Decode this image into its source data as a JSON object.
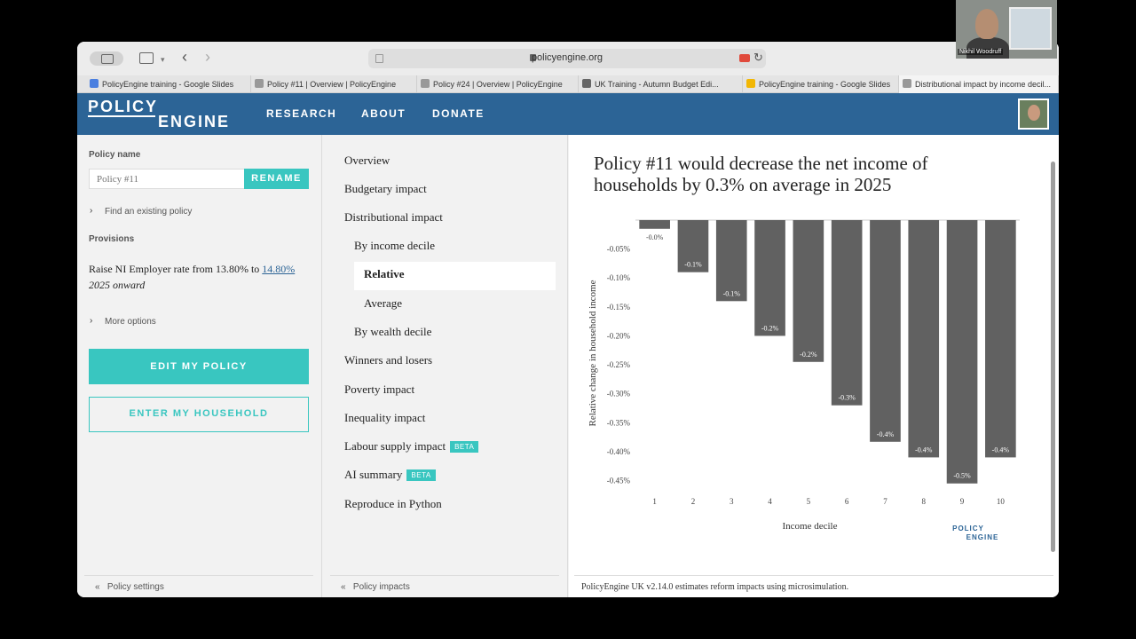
{
  "browser": {
    "url": "policyengine.org",
    "tabs": [
      {
        "title": "PolicyEngine training - Google Slides",
        "color": "#4a7fe0"
      },
      {
        "title": "Policy #11 | Overview | PolicyEngine",
        "color": "#999999"
      },
      {
        "title": "Policy #24 | Overview | PolicyEngine",
        "color": "#999999"
      },
      {
        "title": "UK Training - Autumn Budget Edi...",
        "color": "#666666"
      },
      {
        "title": "PolicyEngine training - Google Slides",
        "color": "#f2b705"
      },
      {
        "title": "Distributional impact by income decil...",
        "color": "#999999"
      }
    ]
  },
  "header": {
    "logo_top": "POLICY",
    "logo_bottom": "ENGINE",
    "nav": [
      "RESEARCH",
      "ABOUT",
      "DONATE"
    ]
  },
  "left": {
    "policy_name_label": "Policy name",
    "policy_name_placeholder": "Policy #11",
    "rename_label": "RENAME",
    "find_existing": "Find an existing policy",
    "provisions_label": "Provisions",
    "provision_text": "Raise NI Employer rate from 13.80% to",
    "provision_value": "14.80%",
    "provision_period": "2025 onward",
    "more_options": "More options",
    "edit_button": "EDIT MY POLICY",
    "household_button": "ENTER MY HOUSEHOLD",
    "footer": "Policy settings"
  },
  "middle": {
    "items": [
      {
        "label": "Overview"
      },
      {
        "label": "Budgetary impact"
      },
      {
        "label": "Distributional impact"
      },
      {
        "label": "By income decile"
      },
      {
        "label": "Relative"
      },
      {
        "label": "Average"
      },
      {
        "label": "By wealth decile"
      },
      {
        "label": "Winners and losers"
      },
      {
        "label": "Poverty impact"
      },
      {
        "label": "Inequality impact"
      },
      {
        "label": "Labour supply impact"
      },
      {
        "label": "AI summary"
      },
      {
        "label": "Reproduce in Python"
      }
    ],
    "beta_label": "BETA",
    "footer": "Policy impacts"
  },
  "right": {
    "title": "Policy #11 would decrease the net income of households by 0.3% on average in 2025",
    "footer": "PolicyEngine UK v2.14.0 estimates reform impacts using microsimulation.",
    "watermark_top": "POLICY",
    "watermark_bottom": "ENGINE"
  },
  "webcam": {
    "name": "Nikhil Woodruff"
  },
  "chart_data": {
    "type": "bar",
    "title": "Policy #11 would decrease the net income of households by 0.3% on average in 2025",
    "xlabel": "Income decile",
    "ylabel": "Relative change in household income",
    "categories": [
      "1",
      "2",
      "3",
      "4",
      "5",
      "6",
      "7",
      "8",
      "9",
      "10"
    ],
    "values": [
      -0.015,
      -0.09,
      -0.14,
      -0.2,
      -0.245,
      -0.32,
      -0.383,
      -0.41,
      -0.455,
      -0.41
    ],
    "data_labels": [
      "-0.0%",
      "-0.1%",
      "-0.1%",
      "-0.2%",
      "-0.2%",
      "-0.3%",
      "-0.4%",
      "-0.4%",
      "-0.5%",
      "-0.4%"
    ],
    "yticks": [
      "-0.05%",
      "-0.10%",
      "-0.15%",
      "-0.20%",
      "-0.25%",
      "-0.30%",
      "-0.35%",
      "-0.40%",
      "-0.45%"
    ],
    "ytick_values": [
      -0.05,
      -0.1,
      -0.15,
      -0.2,
      -0.25,
      -0.3,
      -0.35,
      -0.4,
      -0.45
    ],
    "ylim": [
      -0.46,
      0
    ],
    "bar_color": "#616161",
    "grid": false
  }
}
